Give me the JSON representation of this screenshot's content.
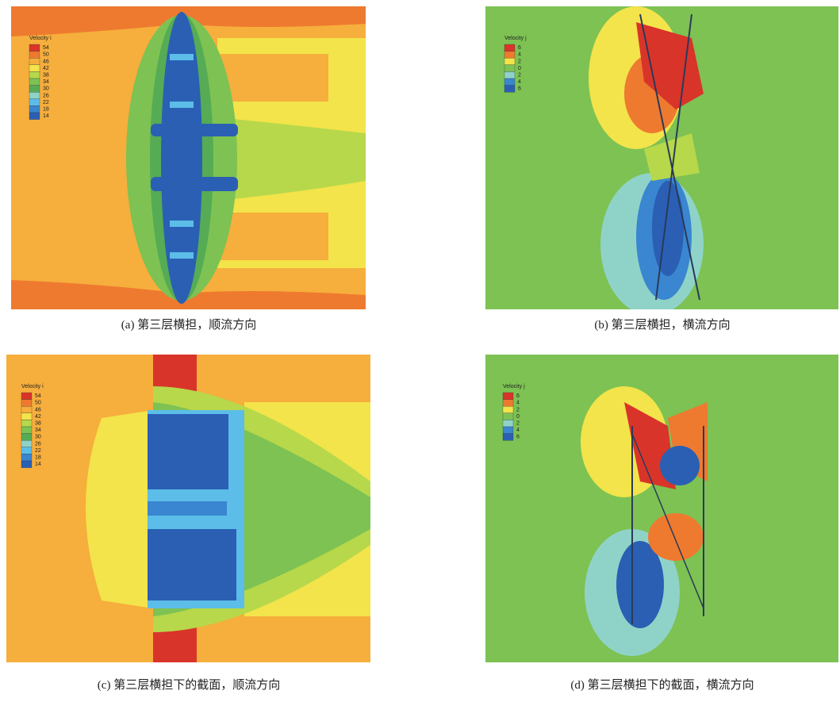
{
  "panels": [
    {
      "legend_title": "Velocity i",
      "legend_labels": [
        "54",
        "50",
        "46",
        "42",
        "38",
        "34",
        "30",
        "26",
        "22",
        "18",
        "14"
      ],
      "legend_colors": [
        "#d9342a",
        "#ee7a2f",
        "#f6ae3c",
        "#f2e44a",
        "#b7d84a",
        "#7dc253",
        "#56ab55",
        "#8fd3c8",
        "#5bbde8",
        "#3a86d0",
        "#2a5fb4"
      ],
      "caption": "(a) 第三层横担，顺流方向"
    },
    {
      "legend_title": "Velocity j",
      "legend_labels": [
        "6",
        "4",
        "2",
        "0",
        "2",
        "4",
        "6"
      ],
      "legend_colors": [
        "#d9342a",
        "#ee7a2f",
        "#f2e44a",
        "#7dc253",
        "#8fd3c8",
        "#3a86d0",
        "#2a5fb4"
      ],
      "caption": "(b) 第三层横担，横流方向"
    },
    {
      "legend_title": "Velocity i",
      "legend_labels": [
        "54",
        "50",
        "46",
        "42",
        "38",
        "34",
        "30",
        "26",
        "22",
        "18",
        "14"
      ],
      "legend_colors": [
        "#d9342a",
        "#ee7a2f",
        "#f6ae3c",
        "#f2e44a",
        "#b7d84a",
        "#7dc253",
        "#56ab55",
        "#8fd3c8",
        "#5bbde8",
        "#3a86d0",
        "#2a5fb4"
      ],
      "caption": "(c) 第三层横担下的截面，顺流方向"
    },
    {
      "legend_title": "Velocity j",
      "legend_labels": [
        "6",
        "4",
        "2",
        "0",
        "2",
        "4",
        "6"
      ],
      "legend_colors": [
        "#d9342a",
        "#ee7a2f",
        "#f2e44a",
        "#7dc253",
        "#8fd3c8",
        "#3a86d0",
        "#2a5fb4"
      ],
      "caption": "(d) 第三层横担下的截面，横流方向"
    }
  ]
}
